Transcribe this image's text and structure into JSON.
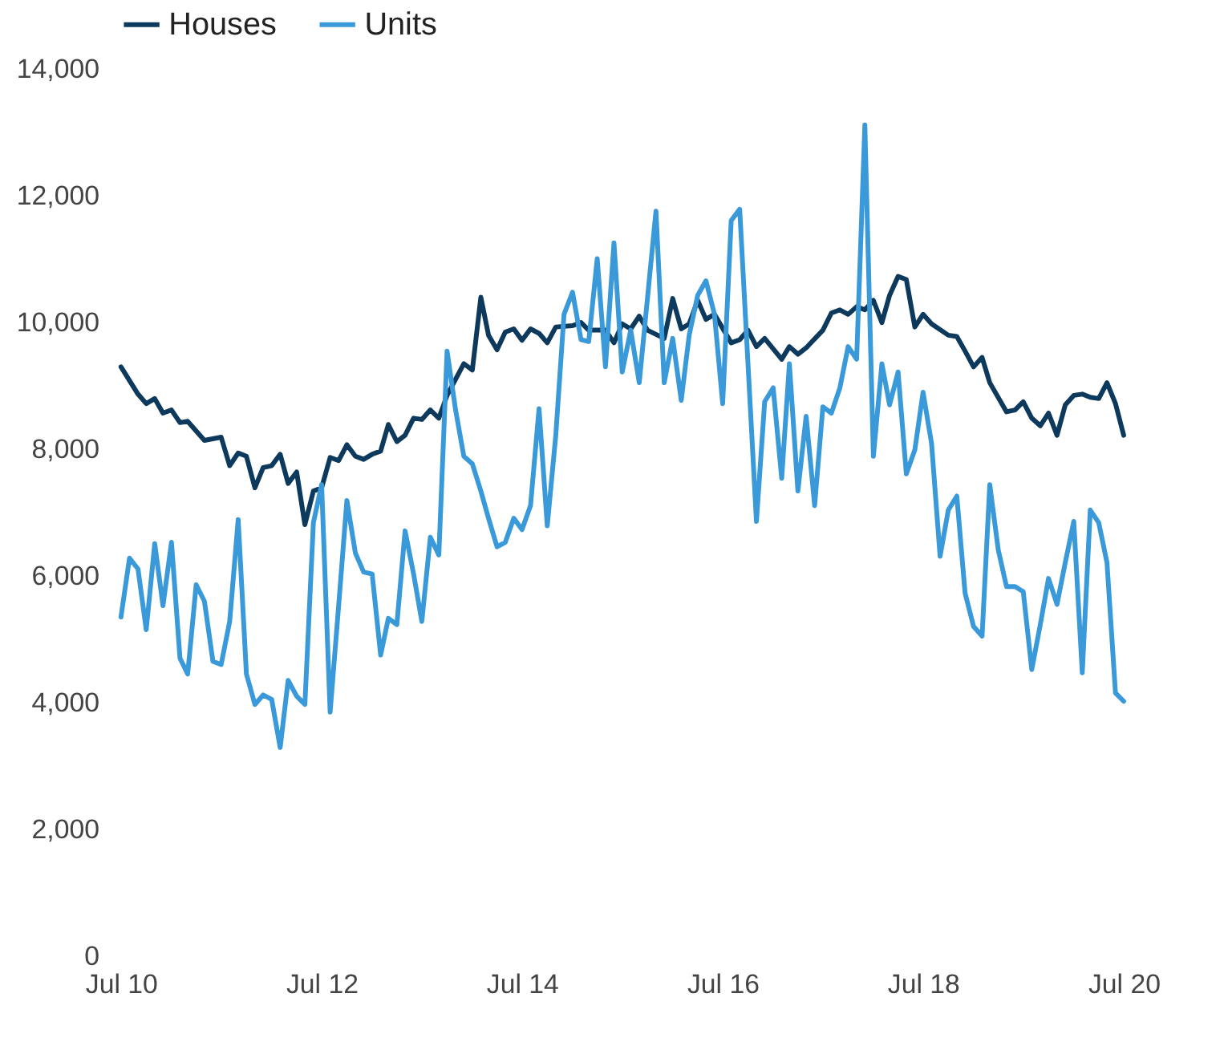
{
  "chart_data": {
    "type": "line",
    "legend": "top",
    "grid": false,
    "xlim": [
      "2010-07",
      "2020-07"
    ],
    "xticks": [
      {
        "value": "2010-07",
        "label": "Jul 10"
      },
      {
        "value": "2012-07",
        "label": "Jul 12"
      },
      {
        "value": "2014-07",
        "label": "Jul 14"
      },
      {
        "value": "2016-07",
        "label": "Jul 16"
      },
      {
        "value": "2018-07",
        "label": "Jul 18"
      },
      {
        "value": "2020-07",
        "label": "Jul 20"
      }
    ],
    "ylim": [
      0,
      14000
    ],
    "yticks": [
      0,
      {
        "value": 2000,
        "label": "2,000"
      },
      {
        "value": 4000,
        "label": "4,000"
      },
      {
        "value": 6000,
        "label": "6,000"
      },
      {
        "value": 8000,
        "label": "8,000"
      },
      {
        "value": 10000,
        "label": "10,000"
      },
      {
        "value": 12000,
        "label": "12,000"
      },
      {
        "value": 14000,
        "label": "14,000"
      }
    ],
    "series": [
      {
        "name": "Houses",
        "color": "#0d3a5c",
        "x": [
          "2010-07",
          "2010-09",
          "2010-10",
          "2010-11",
          "2010-12",
          "2011-01",
          "2011-02",
          "2011-03",
          "2011-05",
          "2011-07",
          "2011-08",
          "2011-09",
          "2011-10",
          "2011-11",
          "2011-12",
          "2012-01",
          "2012-02",
          "2012-03",
          "2012-04",
          "2012-05",
          "2012-06",
          "2012-07",
          "2012-08",
          "2012-09",
          "2012-10",
          "2012-11",
          "2012-12",
          "2013-01",
          "2013-02",
          "2013-03",
          "2013-04",
          "2013-05",
          "2013-06",
          "2013-07",
          "2013-08",
          "2013-09",
          "2013-10",
          "2013-12",
          "2014-01",
          "2014-02",
          "2014-03",
          "2014-04",
          "2014-05",
          "2014-06",
          "2014-07",
          "2014-08",
          "2014-09",
          "2014-10",
          "2014-11",
          "2015-01",
          "2015-02",
          "2015-03",
          "2015-05",
          "2015-06",
          "2015-07",
          "2015-08",
          "2015-09",
          "2015-10",
          "2015-12",
          "2016-01",
          "2016-02",
          "2016-03",
          "2016-04",
          "2016-05",
          "2016-06",
          "2016-08",
          "2016-09",
          "2016-10",
          "2016-11",
          "2016-12",
          "2017-02",
          "2017-03",
          "2017-04",
          "2017-05",
          "2017-07",
          "2017-08",
          "2017-09",
          "2017-10",
          "2017-11",
          "2017-12",
          "2018-01",
          "2018-02",
          "2018-03",
          "2018-04",
          "2018-05",
          "2018-06",
          "2018-07",
          "2018-08",
          "2018-10",
          "2018-11",
          "2018-12",
          "2019-01",
          "2019-02",
          "2019-03",
          "2019-05",
          "2019-06",
          "2019-07",
          "2019-08",
          "2019-09",
          "2019-10",
          "2019-11",
          "2019-12",
          "2020-01",
          "2020-02",
          "2020-03",
          "2020-04",
          "2020-05",
          "2020-06",
          "2020-07"
        ],
        "values": [
          9300,
          8870,
          8720,
          8800,
          8570,
          8620,
          8420,
          8440,
          8140,
          8190,
          7740,
          7940,
          7890,
          7390,
          7710,
          7740,
          7920,
          7460,
          7640,
          6810,
          7340,
          7390,
          7870,
          7820,
          8070,
          7890,
          7840,
          7920,
          7970,
          8390,
          8120,
          8220,
          8490,
          8470,
          8620,
          8490,
          8850,
          9350,
          9250,
          10400,
          9800,
          9570,
          9850,
          9900,
          9720,
          9900,
          9830,
          9680,
          9930,
          9950,
          10000,
          9880,
          9880,
          9680,
          9980,
          9900,
          10100,
          9880,
          9750,
          10380,
          9900,
          9980,
          10350,
          10050,
          10130,
          9680,
          9730,
          9880,
          9620,
          9750,
          9420,
          9620,
          9500,
          9600,
          9880,
          10150,
          10200,
          10130,
          10250,
          10200,
          10350,
          10000,
          10430,
          10730,
          10680,
          9930,
          10130,
          9980,
          9800,
          9780,
          9550,
          9300,
          9450,
          9050,
          8590,
          8620,
          8750,
          8490,
          8370,
          8570,
          8220,
          8700,
          8850,
          8870,
          8820,
          8800,
          9050,
          8720,
          8220
        ]
      },
      {
        "name": "Units",
        "color": "#3a9ad9",
        "x": [
          "2010-07",
          "2010-08",
          "2010-09",
          "2010-10",
          "2010-11",
          "2010-12",
          "2011-01",
          "2011-02",
          "2011-03",
          "2011-04",
          "2011-05",
          "2011-06",
          "2011-07",
          "2011-08",
          "2011-09",
          "2011-10",
          "2011-11",
          "2011-12",
          "2012-01",
          "2012-02",
          "2012-03",
          "2012-04",
          "2012-05",
          "2012-06",
          "2012-07",
          "2012-08",
          "2012-09",
          "2012-10",
          "2012-11",
          "2012-12",
          "2013-01",
          "2013-02",
          "2013-03",
          "2013-04",
          "2013-05",
          "2013-06",
          "2013-07",
          "2013-08",
          "2013-09",
          "2013-10",
          "2013-11",
          "2013-12",
          "2014-01",
          "2014-02",
          "2014-03",
          "2014-04",
          "2014-05",
          "2014-06",
          "2014-07",
          "2014-08",
          "2014-09",
          "2014-10",
          "2014-11",
          "2014-12",
          "2015-01",
          "2015-02",
          "2015-03",
          "2015-04",
          "2015-05",
          "2015-06",
          "2015-07",
          "2015-08",
          "2015-09",
          "2015-11",
          "2015-12",
          "2016-01",
          "2016-02",
          "2016-03",
          "2016-04",
          "2016-05",
          "2016-06",
          "2016-07",
          "2016-08",
          "2016-09",
          "2016-11",
          "2016-12",
          "2017-01",
          "2017-02",
          "2017-03",
          "2017-04",
          "2017-05",
          "2017-06",
          "2017-07",
          "2017-08",
          "2017-09",
          "2017-10",
          "2017-11",
          "2017-12",
          "2018-01",
          "2018-02",
          "2018-03",
          "2018-04",
          "2018-05",
          "2018-06",
          "2018-07",
          "2018-08",
          "2018-09",
          "2018-10",
          "2018-11",
          "2018-12",
          "2019-01",
          "2019-02",
          "2019-03",
          "2019-04",
          "2019-05",
          "2019-06",
          "2019-07",
          "2019-08",
          "2019-09",
          "2019-10",
          "2019-11",
          "2019-12",
          "2020-01",
          "2020-02",
          "2020-03",
          "2020-04",
          "2020-05",
          "2020-06",
          "2020-07"
        ],
        "values": [
          5350,
          6280,
          6110,
          5150,
          6510,
          5530,
          6530,
          4700,
          4450,
          5860,
          5600,
          4650,
          4600,
          5280,
          6890,
          4450,
          3970,
          4120,
          4050,
          3290,
          4350,
          4100,
          3970,
          6840,
          7440,
          3850,
          5530,
          7190,
          6360,
          6060,
          6030,
          4750,
          5330,
          5230,
          6710,
          6030,
          5280,
          6610,
          6330,
          9550,
          8620,
          7890,
          7770,
          7340,
          6910,
          6460,
          6530,
          6910,
          6730,
          7110,
          8640,
          6790,
          8220,
          10130,
          10480,
          9730,
          9700,
          11010,
          9300,
          11260,
          9220,
          9880,
          9050,
          11760,
          9050,
          9750,
          8770,
          9800,
          10430,
          10660,
          10130,
          8720,
          11610,
          11790,
          6860,
          8750,
          8970,
          7540,
          9350,
          7340,
          8520,
          7110,
          8670,
          8570,
          8970,
          9620,
          9420,
          13120,
          7890,
          9350,
          8700,
          9220,
          7610,
          7990,
          8900,
          8090,
          6310,
          7040,
          7260,
          5730,
          5200,
          5050,
          7440,
          6410,
          5830,
          5830,
          5750,
          4520,
          5230,
          5960,
          5550,
          6210,
          6860,
          4470,
          7040,
          6840,
          6210,
          4150,
          4020
        ]
      }
    ]
  }
}
